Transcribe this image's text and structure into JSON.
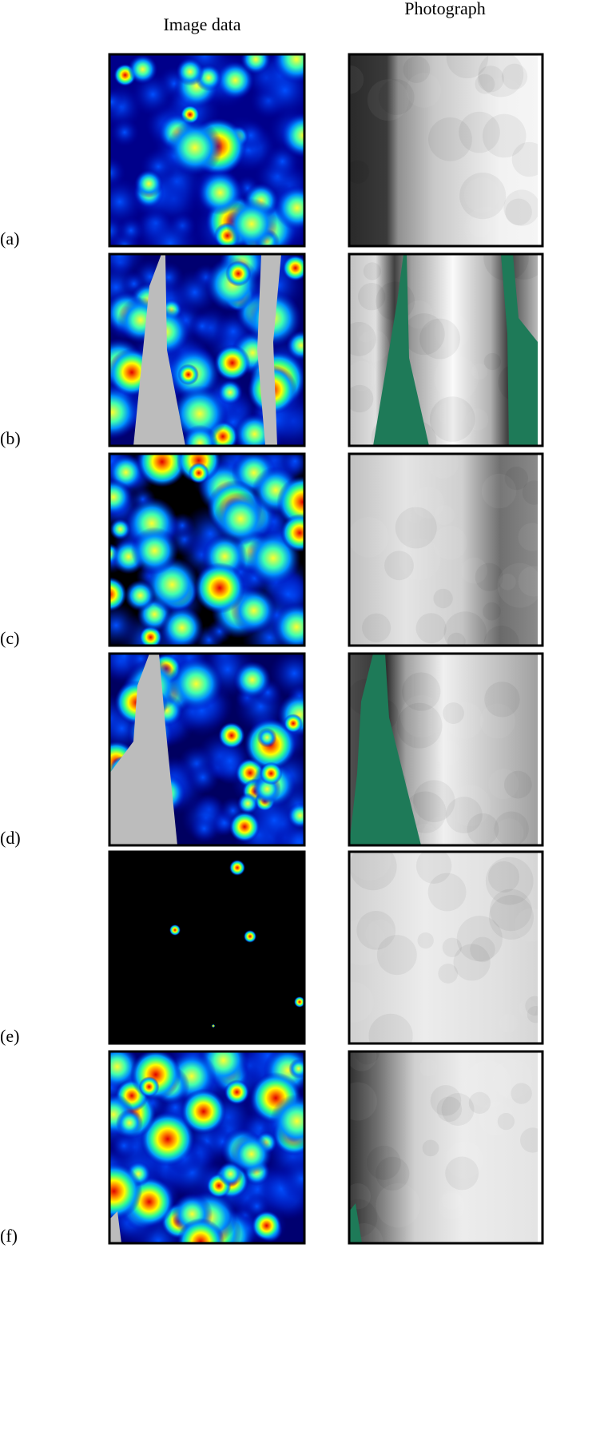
{
  "headers": {
    "image_data": "Image data",
    "photograph": "Photograph"
  },
  "panels": [
    {
      "label": "(a)"
    },
    {
      "label": "(b)"
    },
    {
      "label": "(c)"
    },
    {
      "label": "(d)"
    },
    {
      "label": "(e)"
    },
    {
      "label": "(f)"
    }
  ]
}
